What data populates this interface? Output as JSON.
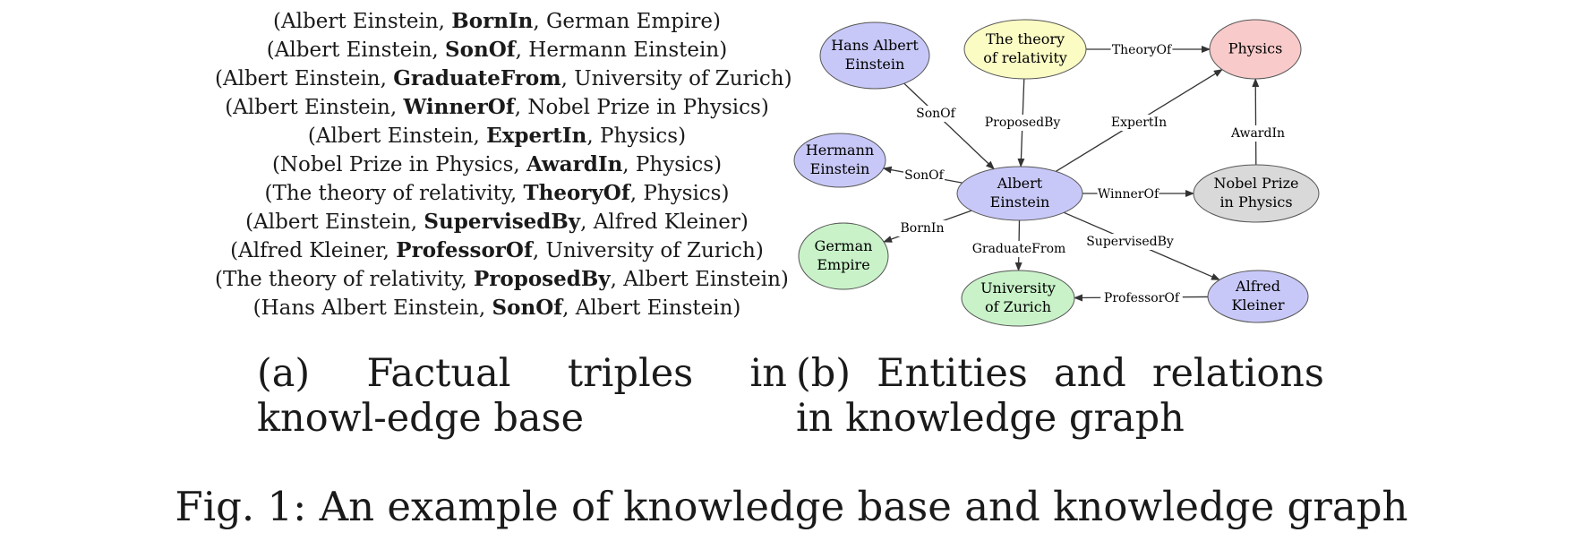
{
  "triples": [
    {
      "head": "Albert Einstein",
      "relation": "BornIn",
      "tail": "German Empire"
    },
    {
      "head": "Albert Einstein",
      "relation": "SonOf",
      "tail": "Hermann Einstein"
    },
    {
      "head": "Albert Einstein",
      "relation": "GraduateFrom",
      "tail": "University of Zurich"
    },
    {
      "head": "Albert Einstein",
      "relation": "WinnerOf",
      "tail": "Nobel Prize in Physics"
    },
    {
      "head": "Albert Einstein",
      "relation": "ExpertIn",
      "tail": "Physics"
    },
    {
      "head": "Nobel Prize in Physics",
      "relation": "AwardIn",
      "tail": "Physics"
    },
    {
      "head": "The theory of relativity",
      "relation": "TheoryOf",
      "tail": "Physics"
    },
    {
      "head": "Albert Einstein",
      "relation": "SupervisedBy",
      "tail": "Alfred Kleiner"
    },
    {
      "head": "Alfred Kleiner",
      "relation": "ProfessorOf",
      "tail": "University of Zurich"
    },
    {
      "head": "The theory of relativity",
      "relation": "ProposedBy",
      "tail": "Albert Einstein"
    },
    {
      "head": "Hans Albert Einstein",
      "relation": "SonOf",
      "tail": "Albert Einstein"
    }
  ],
  "graph": {
    "nodes": [
      {
        "id": "hans",
        "lines": [
          "Hans Albert",
          "Einstein"
        ],
        "color": "#c8c8f8"
      },
      {
        "id": "theory",
        "lines": [
          "The theory",
          "of relativity"
        ],
        "color": "#fbfbc4"
      },
      {
        "id": "physics",
        "lines": [
          "Physics"
        ],
        "color": "#f8caca"
      },
      {
        "id": "hermann",
        "lines": [
          "Hermann",
          "Einstein"
        ],
        "color": "#c8c8f8"
      },
      {
        "id": "albert",
        "lines": [
          "Albert",
          "Einstein"
        ],
        "color": "#c8c8f8"
      },
      {
        "id": "nobel",
        "lines": [
          "Nobel Prize",
          "in Physics"
        ],
        "color": "#d9d9d9"
      },
      {
        "id": "german",
        "lines": [
          "German",
          "Empire"
        ],
        "color": "#c9f2c9"
      },
      {
        "id": "zurich",
        "lines": [
          "University",
          "of Zurich"
        ],
        "color": "#c9f2c9"
      },
      {
        "id": "kleiner",
        "lines": [
          "Alfred",
          "Kleiner"
        ],
        "color": "#c8c8f8"
      }
    ],
    "edges": [
      {
        "from": "theory",
        "to": "physics",
        "label": "TheoryOf"
      },
      {
        "from": "hans",
        "to": "albert",
        "label": "SonOf"
      },
      {
        "from": "theory",
        "to": "albert",
        "label": "ProposedBy"
      },
      {
        "from": "albert",
        "to": "physics",
        "label": "ExpertIn"
      },
      {
        "from": "nobel",
        "to": "physics",
        "label": "AwardIn"
      },
      {
        "from": "albert",
        "to": "hermann",
        "label": "SonOf"
      },
      {
        "from": "albert",
        "to": "nobel",
        "label": "WinnerOf"
      },
      {
        "from": "albert",
        "to": "german",
        "label": "BornIn"
      },
      {
        "from": "albert",
        "to": "zurich",
        "label": "GraduateFrom"
      },
      {
        "from": "albert",
        "to": "kleiner",
        "label": "SupervisedBy"
      },
      {
        "from": "kleiner",
        "to": "zurich",
        "label": "ProfessorOf"
      }
    ]
  },
  "captions": {
    "a": "(a) Factual triples in knowl-edge base",
    "b": "(b) Entities and relations in knowledge graph",
    "figure": "Fig. 1: An example of knowledge base and knowledge graph"
  }
}
